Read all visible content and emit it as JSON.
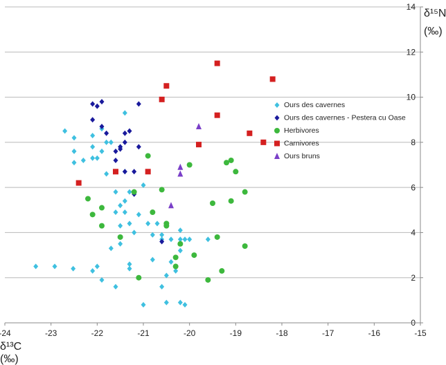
{
  "chart_data": {
    "type": "scatter",
    "xlabel": [
      "δ¹³C",
      "(‰)"
    ],
    "ylabel": [
      "δ¹⁵N",
      "(‰)"
    ],
    "xlim": [
      -24,
      -15
    ],
    "xticks": [
      -24,
      -23,
      -22,
      -21,
      -20,
      -19,
      -18,
      -17,
      -16,
      -15
    ],
    "ylim": [
      0,
      14
    ],
    "yticks": [
      0,
      2,
      4,
      6,
      8,
      10,
      12,
      14
    ],
    "grid": true,
    "series": [
      {
        "name": "Ours des cavernes",
        "color": "#3fc0e0",
        "marker": "diamond",
        "x": [
          -23.33,
          -22.92,
          -22.52,
          -22.1,
          -22.0,
          -21.9,
          -21.6,
          -21.3,
          -21.3,
          -21.0,
          -20.6,
          -20.5,
          -20.2,
          -20.1,
          -20.8,
          -20.5,
          -20.4,
          -20.3,
          -20.2,
          -20.1,
          -20.2,
          -20.0,
          -19.6,
          -20.4,
          -20.6,
          -20.6,
          -20.8,
          -20.7,
          -20.9,
          -21.1,
          -21.3,
          -21.5,
          -21.7,
          -21.5,
          -21.2,
          -21.6,
          -21.4,
          -21.4,
          -21.5,
          -21.6,
          -21.3,
          -21.0,
          -20.2,
          -21.4,
          -21.8,
          -21.6,
          -21.9,
          -21.8,
          -22.1,
          -21.7,
          -22.1,
          -21.9,
          -22.3,
          -22.5,
          -22.5,
          -22.5,
          -22.7,
          -22.1,
          -22.0,
          -21.5,
          -21.4
        ],
        "values": [
          2.5,
          2.5,
          2.4,
          2.3,
          2.5,
          1.9,
          1.6,
          2.6,
          2.4,
          0.8,
          1.6,
          0.9,
          0.9,
          0.8,
          2.8,
          2.1,
          2.7,
          2.3,
          3.2,
          3.7,
          3.7,
          3.7,
          3.7,
          3.7,
          3.9,
          3.7,
          3.9,
          4.4,
          4.4,
          4.8,
          4.4,
          4.3,
          3.3,
          3.5,
          4.0,
          4.9,
          4.9,
          5.4,
          5.2,
          5.8,
          5.8,
          6.1,
          4.1,
          6.7,
          6.6,
          6.7,
          7.6,
          8.0,
          7.8,
          8.0,
          8.3,
          8.6,
          7.2,
          7.1,
          7.6,
          8.2,
          8.5,
          7.3,
          7.3,
          7.8,
          9.3
        ]
      },
      {
        "name": "Ours des cavernes - Pestera cu Oase",
        "color": "#1a1a9c",
        "marker": "diamond",
        "x": [
          -22.1,
          -22.0,
          -21.9,
          -22.1,
          -21.9,
          -21.8,
          -21.6,
          -21.6,
          -21.5,
          -21.5,
          -21.4,
          -21.3,
          -21.4,
          -21.1,
          -21.1,
          -21.2,
          -21.4,
          -21.2,
          -20.6
        ],
        "values": [
          9.7,
          9.6,
          9.8,
          9.0,
          8.7,
          8.4,
          7.6,
          7.2,
          7.8,
          7.7,
          8.4,
          8.5,
          8.0,
          9.7,
          7.8,
          6.7,
          6.7,
          5.7,
          3.6
        ]
      },
      {
        "name": "Herbivores",
        "color": "#3db83d",
        "marker": "circle",
        "x": [
          -22.2,
          -22.1,
          -21.9,
          -21.9,
          -21.5,
          -21.2,
          -20.9,
          -20.8,
          -20.6,
          -20.5,
          -20.5,
          -20.3,
          -20.3,
          -20.2,
          -19.9,
          -20.0,
          -19.6,
          -19.5,
          -19.4,
          -19.3,
          -19.2,
          -19.1,
          -19.0,
          -19.1,
          -18.8,
          -18.8,
          -21.1
        ],
        "values": [
          5.5,
          4.8,
          5.1,
          4.3,
          3.8,
          5.8,
          7.4,
          4.9,
          5.9,
          4.4,
          4.3,
          2.9,
          2.5,
          3.5,
          3.0,
          7.0,
          1.9,
          5.3,
          3.8,
          2.3,
          7.1,
          7.2,
          6.7,
          5.4,
          5.8,
          3.4,
          2.0
        ]
      },
      {
        "name": "Carnivores",
        "color": "#d42020",
        "marker": "square",
        "x": [
          -22.4,
          -21.6,
          -20.9,
          -20.6,
          -20.5,
          -19.8,
          -19.4,
          -19.4,
          -18.7,
          -18.4,
          -18.2
        ],
        "values": [
          6.2,
          6.7,
          6.7,
          9.9,
          10.5,
          7.9,
          11.5,
          9.2,
          8.4,
          8.0,
          10.8
        ]
      },
      {
        "name": "Ours bruns",
        "color": "#7a3fc8",
        "marker": "triangle",
        "x": [
          -19.8,
          -20.2,
          -20.2,
          -20.4
        ],
        "values": [
          8.7,
          6.9,
          6.6,
          5.2
        ]
      }
    ]
  }
}
